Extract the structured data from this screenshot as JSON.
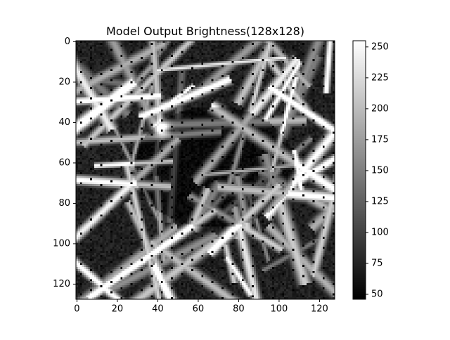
{
  "chart_data": {
    "type": "heatmap",
    "title": "Model Output Brightness(128x128)",
    "xlabel": "",
    "ylabel": "",
    "grid_size": [
      128,
      128
    ],
    "x_range": [
      0,
      127
    ],
    "y_range": [
      0,
      127
    ],
    "y_axis_inverted": true,
    "x_ticks": [
      0,
      20,
      40,
      60,
      80,
      100,
      120
    ],
    "y_ticks": [
      0,
      20,
      40,
      60,
      80,
      100,
      120
    ],
    "colormap": "gray",
    "colorbar": {
      "min": 46,
      "max": 255,
      "ticks": [
        50,
        75,
        100,
        125,
        150,
        175,
        200,
        225,
        250
      ],
      "tick_labels": [
        "50",
        "75",
        "100",
        "125",
        "150",
        "175",
        "200",
        "225",
        "250"
      ],
      "placement": "right"
    },
    "description_of_content": "grayscale texture of bright streaks over a darker oval region near the center, with a regular lattice of black dots"
  }
}
